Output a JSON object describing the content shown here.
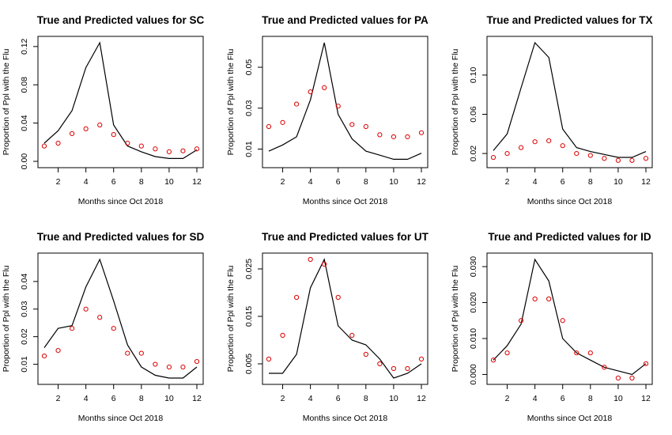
{
  "chart_data": [
    {
      "type": "line",
      "title": "True and Predicted values for SC",
      "xlabel": "Months since Oct 2018",
      "ylabel": "Proportion of Ppl with the Flu",
      "xlim": [
        1,
        12
      ],
      "ylim": [
        0,
        0.124
      ],
      "xticks": [
        2,
        4,
        6,
        8,
        10,
        12
      ],
      "yticks": [
        0.0,
        0.04,
        0.08,
        0.12
      ],
      "ytick_labels": [
        "0.00",
        "0.04",
        "0.08",
        "0.12"
      ],
      "x": [
        1,
        2,
        3,
        4,
        5,
        6,
        7,
        8,
        9,
        10,
        11,
        12
      ],
      "series": [
        {
          "style": "line",
          "color": "#000000",
          "values": [
            0.019,
            0.032,
            0.053,
            0.098,
            0.124,
            0.038,
            0.016,
            0.01,
            0.005,
            0.003,
            0.003,
            0.012
          ]
        },
        {
          "style": "points",
          "color": "#dd0000",
          "values": [
            0.016,
            0.019,
            0.029,
            0.034,
            0.038,
            0.028,
            0.019,
            0.016,
            0.013,
            0.01,
            0.011,
            0.013
          ]
        }
      ]
    },
    {
      "type": "line",
      "title": "True and Predicted values for PA",
      "xlabel": "Months since Oct 2018",
      "ylabel": "Proportion of Ppl with the Flu",
      "xlim": [
        1,
        12
      ],
      "ylim": [
        0.004,
        0.062
      ],
      "xticks": [
        2,
        4,
        6,
        8,
        10,
        12
      ],
      "yticks": [
        0.01,
        0.03,
        0.05
      ],
      "ytick_labels": [
        "0.01",
        "0.03",
        "0.05"
      ],
      "x": [
        1,
        2,
        3,
        4,
        5,
        6,
        7,
        8,
        9,
        10,
        11,
        12
      ],
      "series": [
        {
          "style": "line",
          "color": "#000000",
          "values": [
            0.009,
            0.012,
            0.016,
            0.034,
            0.062,
            0.027,
            0.015,
            0.009,
            0.007,
            0.005,
            0.005,
            0.008
          ]
        },
        {
          "style": "points",
          "color": "#dd0000",
          "values": [
            0.021,
            0.023,
            0.032,
            0.038,
            0.04,
            0.031,
            0.022,
            0.021,
            0.017,
            0.016,
            0.016,
            0.018
          ]
        }
      ]
    },
    {
      "type": "line",
      "title": "True and Predicted values for TX",
      "xlabel": "Months since Oct 2018",
      "ylabel": "Proportion of Ppl with the Flu",
      "xlim": [
        1,
        12
      ],
      "ylim": [
        0.012,
        0.133
      ],
      "xticks": [
        2,
        4,
        6,
        8,
        10,
        12
      ],
      "yticks": [
        0.02,
        0.06,
        0.1
      ],
      "ytick_labels": [
        "0.02",
        "0.06",
        "0.10"
      ],
      "x": [
        1,
        2,
        3,
        4,
        5,
        6,
        7,
        8,
        9,
        10,
        11,
        12
      ],
      "series": [
        {
          "style": "line",
          "color": "#000000",
          "values": [
            0.023,
            0.04,
            0.087,
            0.133,
            0.118,
            0.045,
            0.026,
            0.022,
            0.019,
            0.016,
            0.016,
            0.022
          ]
        },
        {
          "style": "points",
          "color": "#dd0000",
          "values": [
            0.016,
            0.02,
            0.026,
            0.032,
            0.033,
            0.028,
            0.02,
            0.018,
            0.015,
            0.013,
            0.013,
            0.015
          ]
        }
      ]
    },
    {
      "type": "line",
      "title": "True and Predicted values for SD",
      "xlabel": "Months since Oct 2018",
      "ylabel": "Proportion of Ppl with the Flu",
      "xlim": [
        1,
        12
      ],
      "ylim": [
        0.005,
        0.048
      ],
      "xticks": [
        2,
        4,
        6,
        8,
        10,
        12
      ],
      "yticks": [
        0.01,
        0.02,
        0.03,
        0.04
      ],
      "ytick_labels": [
        "0.01",
        "0.02",
        "0.03",
        "0.04"
      ],
      "x": [
        1,
        2,
        3,
        4,
        5,
        6,
        7,
        8,
        9,
        10,
        11,
        12
      ],
      "series": [
        {
          "style": "line",
          "color": "#000000",
          "values": [
            0.016,
            0.023,
            0.024,
            0.038,
            0.048,
            0.033,
            0.017,
            0.009,
            0.006,
            0.005,
            0.005,
            0.009
          ]
        },
        {
          "style": "points",
          "color": "#dd0000",
          "values": [
            0.013,
            0.015,
            0.023,
            0.03,
            0.027,
            0.023,
            0.014,
            0.014,
            0.01,
            0.009,
            0.009,
            0.011
          ]
        }
      ]
    },
    {
      "type": "line",
      "title": "True and Predicted values for UT",
      "xlabel": "Months since Oct 2018",
      "ylabel": "Proportion of Ppl with the Flu",
      "xlim": [
        1,
        12
      ],
      "ylim": [
        0.002,
        0.027
      ],
      "xticks": [
        2,
        4,
        6,
        8,
        10,
        12
      ],
      "yticks": [
        0.005,
        0.015,
        0.025
      ],
      "ytick_labels": [
        "0.005",
        "0.015",
        "0.025"
      ],
      "x": [
        1,
        2,
        3,
        4,
        5,
        6,
        7,
        8,
        9,
        10,
        11,
        12
      ],
      "series": [
        {
          "style": "line",
          "color": "#000000",
          "values": [
            0.003,
            0.003,
            0.007,
            0.021,
            0.027,
            0.013,
            0.01,
            0.009,
            0.006,
            0.002,
            0.003,
            0.005
          ]
        },
        {
          "style": "points",
          "color": "#dd0000",
          "values": [
            0.006,
            0.011,
            0.019,
            0.027,
            0.026,
            0.019,
            0.011,
            0.007,
            0.005,
            0.004,
            0.004,
            0.006
          ]
        }
      ]
    },
    {
      "type": "line",
      "title": "True and Predicted values for ID",
      "xlabel": "Months since Oct 2018",
      "ylabel": "Proportion of Ppl with the Flu",
      "xlim": [
        1,
        12
      ],
      "ylim": [
        -0.001,
        0.032
      ],
      "xticks": [
        2,
        4,
        6,
        8,
        10,
        12
      ],
      "yticks": [
        0.0,
        0.01,
        0.02,
        0.03
      ],
      "ytick_labels": [
        "0.000",
        "0.010",
        "0.020",
        "0.030"
      ],
      "x": [
        1,
        2,
        3,
        4,
        5,
        6,
        7,
        8,
        9,
        10,
        11,
        12
      ],
      "series": [
        {
          "style": "line",
          "color": "#000000",
          "values": [
            0.004,
            0.008,
            0.014,
            0.032,
            0.026,
            0.01,
            0.006,
            0.004,
            0.002,
            0.001,
            0.0,
            0.003
          ]
        },
        {
          "style": "points",
          "color": "#dd0000",
          "values": [
            0.004,
            0.006,
            0.015,
            0.021,
            0.021,
            0.015,
            0.006,
            0.006,
            0.002,
            -0.001,
            -0.001,
            0.003
          ]
        }
      ]
    }
  ]
}
